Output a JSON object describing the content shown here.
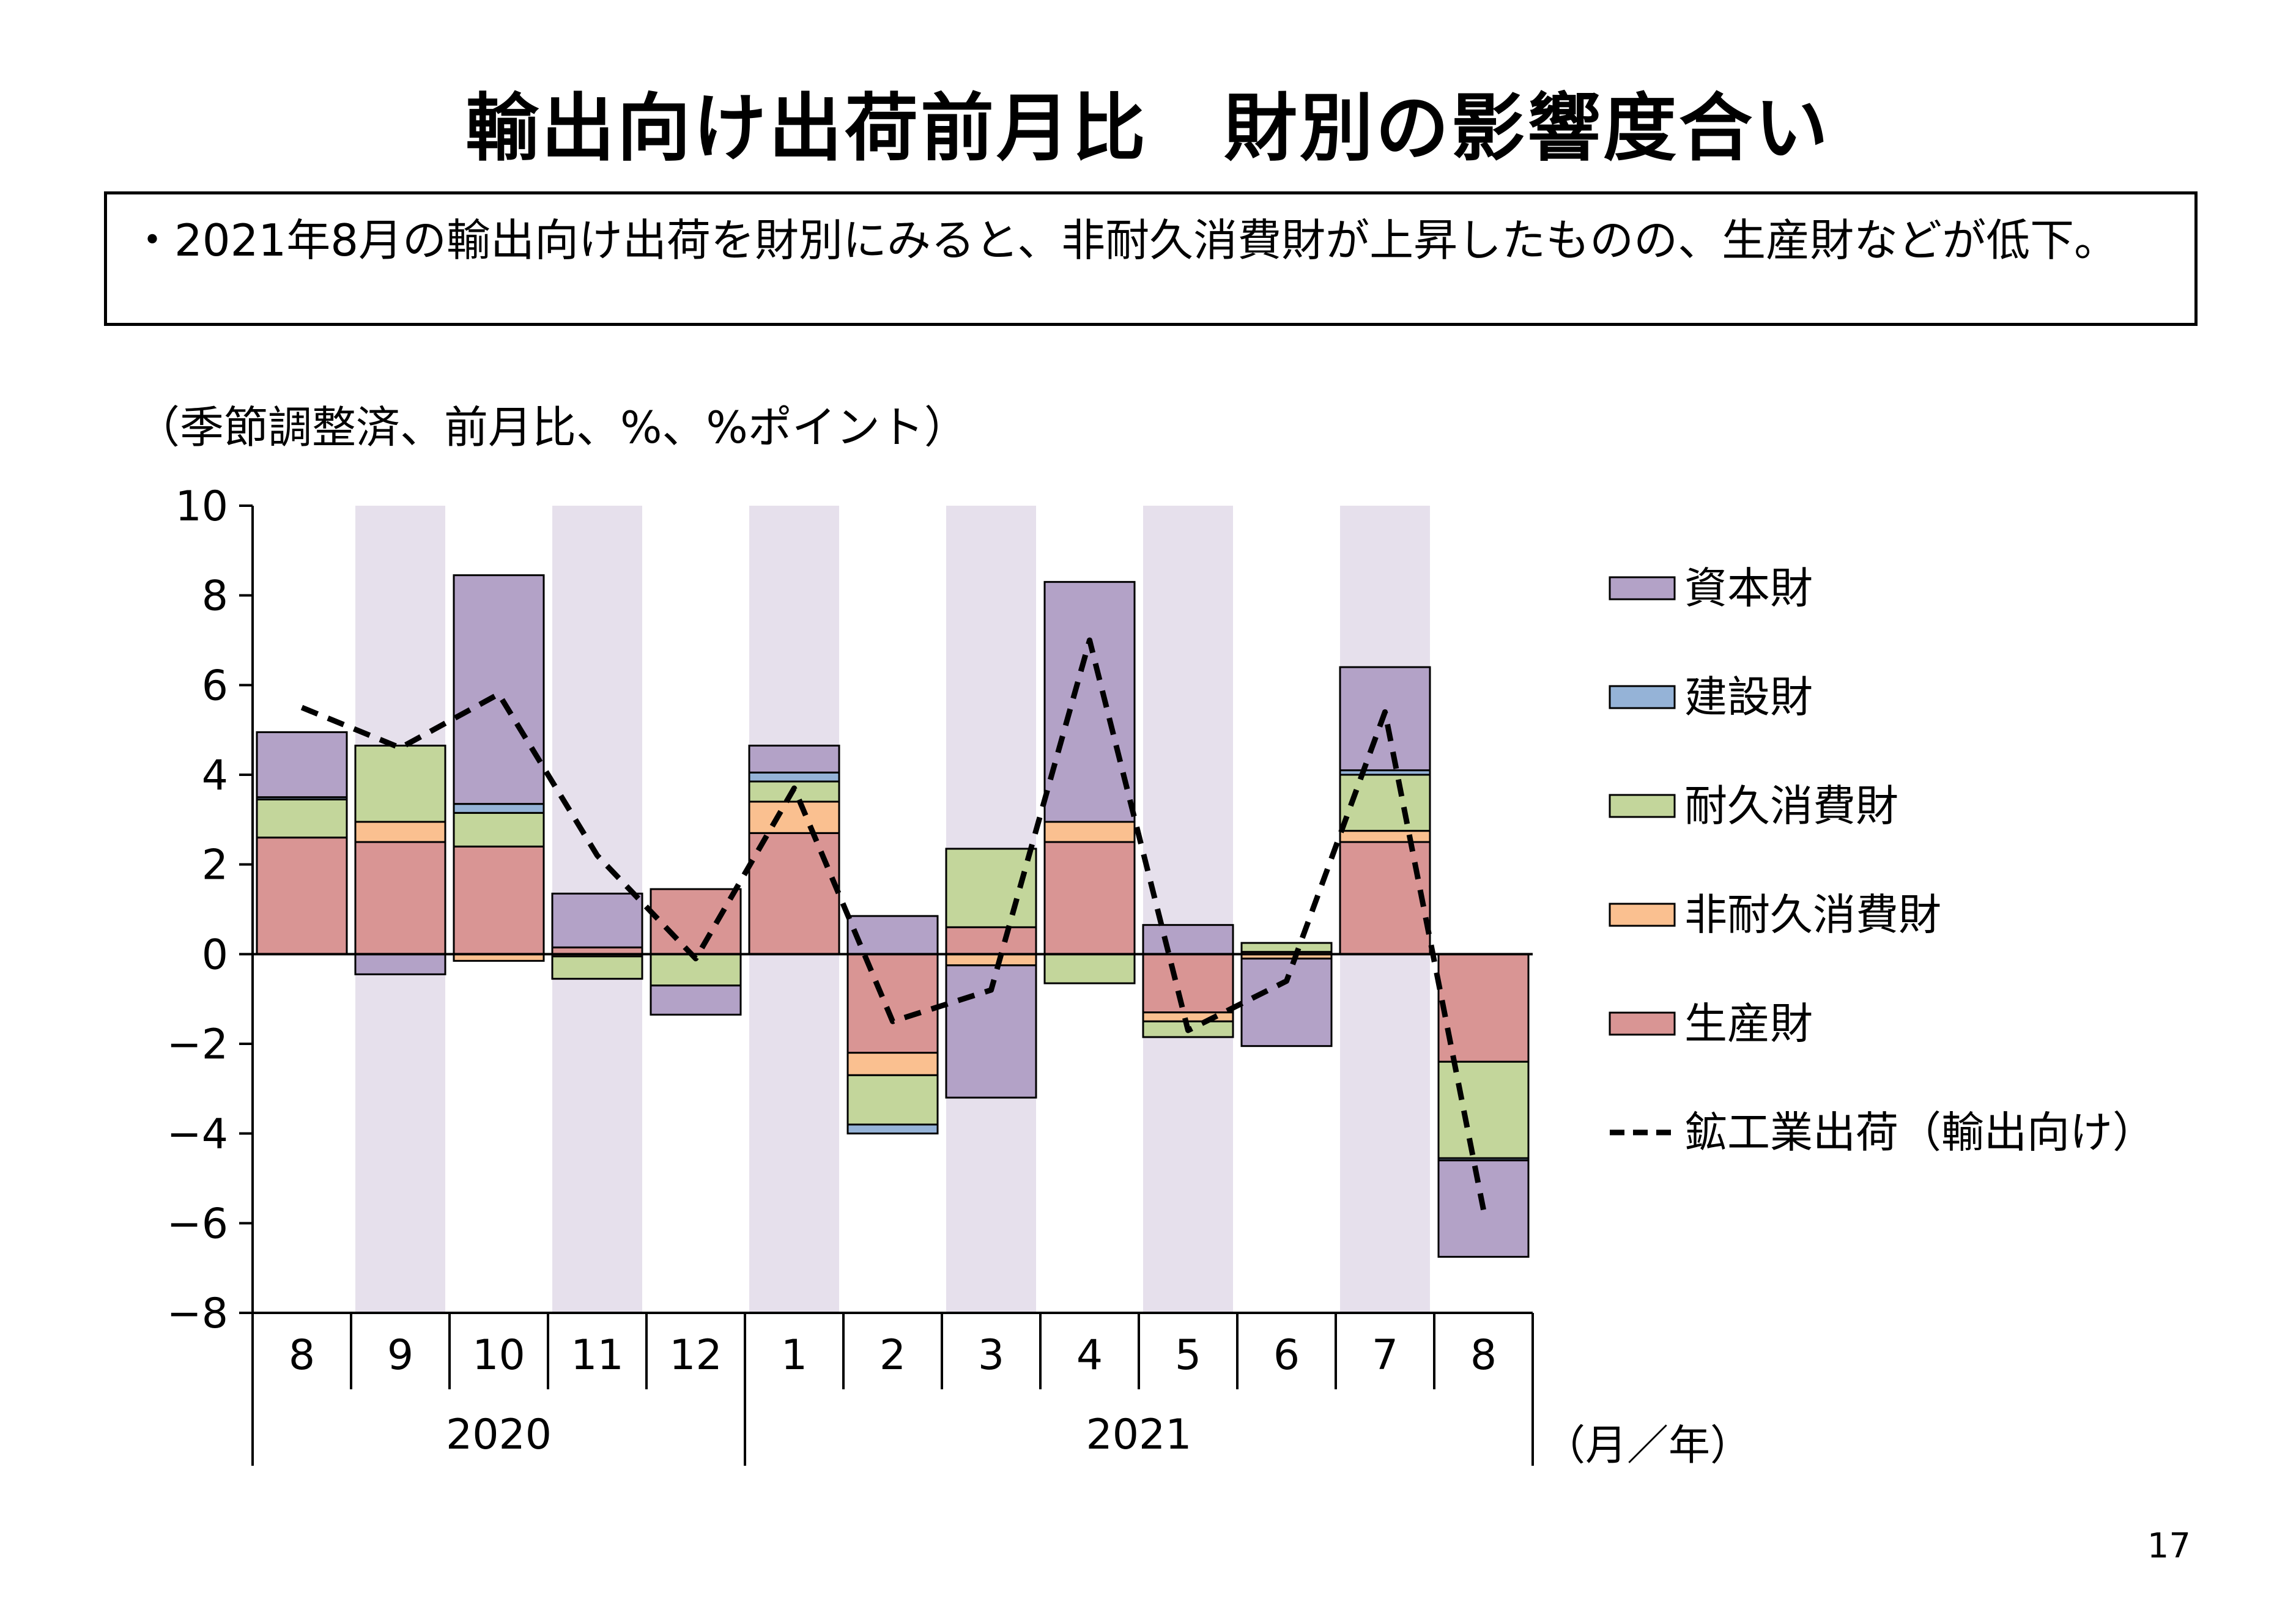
{
  "title": "輸出向け出荷前月比　財別の影響度合い",
  "summary": "・2021年8月の輸出向け出荷を財別にみると、非耐久消費財が上昇したものの、生産財などが低下。",
  "unit_label": "（季節調整済、前月比、%、%ポイント）",
  "page_number": "17",
  "chart_data": {
    "type": "bar",
    "stacked": true,
    "categories": [
      "8",
      "9",
      "10",
      "11",
      "12",
      "1",
      "2",
      "3",
      "4",
      "5",
      "6",
      "7",
      "8"
    ],
    "year_groups": [
      {
        "label": "2020",
        "start": 0,
        "end": 4
      },
      {
        "label": "2021",
        "start": 5,
        "end": 12
      }
    ],
    "x_unit_label": "（月／年）",
    "ylim": [
      -8,
      10
    ],
    "yticks": [
      "10",
      "8",
      "6",
      "4",
      "2",
      "0",
      "−2",
      "−4",
      "−6",
      "−8"
    ],
    "shaded_categories": [
      1,
      3,
      5,
      7,
      9,
      11
    ],
    "series": [
      {
        "name": "生産財",
        "color": "#d99594",
        "values": [
          2.6,
          2.5,
          2.4,
          0.15,
          1.45,
          2.7,
          -2.2,
          0.6,
          2.5,
          -1.3,
          0.05,
          2.5,
          -2.4
        ]
      },
      {
        "name": "非耐久消費財",
        "color": "#fac090",
        "values": [
          0.0,
          0.45,
          -0.15,
          -0.05,
          0.0,
          0.7,
          -0.5,
          -0.25,
          0.45,
          -0.2,
          -0.1,
          0.25,
          0.0
        ]
      },
      {
        "name": "耐久消費財",
        "color": "#c3d69b",
        "values": [
          0.85,
          1.7,
          0.75,
          -0.5,
          -0.7,
          0.45,
          -1.1,
          1.75,
          -0.65,
          -0.35,
          0.2,
          1.25,
          -2.15
        ]
      },
      {
        "name": "建設財",
        "color": "#95b3d7",
        "values": [
          0.05,
          0.0,
          0.2,
          0.0,
          0.0,
          0.2,
          -0.2,
          0.0,
          0.0,
          0.0,
          0.0,
          0.1,
          -0.05
        ]
      },
      {
        "name": "資本財",
        "color": "#b3a2c7",
        "values": [
          1.45,
          -0.45,
          5.1,
          1.2,
          -0.65,
          0.6,
          0.85,
          -2.95,
          5.35,
          0.65,
          -1.95,
          2.3,
          -2.15
        ]
      }
    ],
    "legend_order": [
      "資本財",
      "建設財",
      "耐久消費財",
      "非耐久消費財",
      "生産財"
    ],
    "line_series": {
      "name": "鉱工業出荷（輸出向け）",
      "color": "#000000",
      "style": "dashed",
      "values": [
        5.5,
        4.6,
        5.8,
        2.2,
        -0.1,
        3.7,
        -1.5,
        -0.8,
        7.0,
        -1.7,
        -0.6,
        5.4,
        -5.7
      ]
    }
  }
}
